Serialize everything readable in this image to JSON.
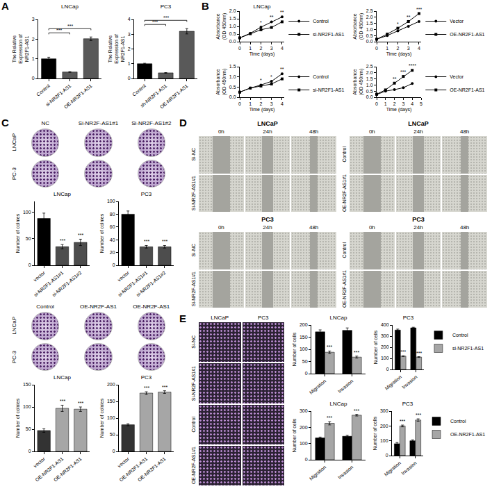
{
  "letters": [
    "A",
    "B",
    "C",
    "D",
    "E"
  ],
  "chart_data": [
    {
      "type": "bar",
      "title": "LNCap",
      "y_label": "The Relative Expression of NR2F1-AS1",
      "categories": [
        "Control",
        "si-NR2F1-AS1",
        "OE-NR2F1-AS1"
      ],
      "values": [
        1.0,
        0.33,
        2.02
      ],
      "errors": [
        0.08,
        0.02,
        0.09
      ],
      "colors": [
        "#000000",
        "#595959",
        "#595959"
      ],
      "ylim": [
        0,
        3
      ],
      "yticks": [
        0,
        1,
        2,
        3
      ],
      "comparisons": [
        {
          "from": 0,
          "to": 1,
          "text": "***"
        },
        {
          "from": 0,
          "to": 2,
          "text": "***"
        }
      ]
    },
    {
      "type": "bar",
      "title": "PC3",
      "y_label": "The Relative Expression of NR2F1-AS1",
      "categories": [
        "Control",
        "sh-NR2F1-AS1",
        "OE-NR2F1-AS1"
      ],
      "values": [
        1.0,
        0.38,
        3.2
      ],
      "errors": [
        0.03,
        0.02,
        0.18
      ],
      "colors": [
        "#000000",
        "#595959",
        "#595959"
      ],
      "ylim": [
        0,
        4
      ],
      "yticks": [
        0,
        1,
        2,
        3,
        4
      ],
      "comparisons": [
        {
          "from": 0,
          "to": 1,
          "text": "***"
        },
        {
          "from": 0,
          "to": 2,
          "text": "***"
        }
      ]
    },
    {
      "type": "line",
      "title": "LNCap",
      "x": [
        0,
        1,
        2,
        3,
        4
      ],
      "x_label": "Time (days)",
      "y_label": "Absorbance (OD 450nm)",
      "xlim": [
        0,
        4.2
      ],
      "xticks": [
        0,
        1,
        2,
        3,
        4
      ],
      "ylim": [
        0,
        2
      ],
      "yticks": [
        {
          "value": 0,
          "label": "0.0"
        },
        0.5,
        {
          "value": 1,
          "label": "1.0"
        },
        1.5,
        {
          "value": 2,
          "label": "2.0"
        }
      ],
      "legend": "right",
      "series": [
        {
          "name": "Control",
          "color": "#000000",
          "marker": "circle",
          "values": [
            0.25,
            0.55,
            0.95,
            1.3,
            1.62
          ]
        },
        {
          "name": "si-NR2F1-AS1",
          "color": "#000000",
          "marker": "square",
          "values": [
            0.25,
            0.52,
            0.78,
            0.93,
            1.3
          ]
        }
      ],
      "significance": [
        {
          "x": 2,
          "text": "*"
        },
        {
          "x": 3,
          "text": "**"
        },
        {
          "x": 4,
          "text": "**"
        }
      ]
    },
    {
      "type": "line",
      "x": [
        0,
        1,
        2,
        3,
        4
      ],
      "x_label": "Time (days)",
      "y_label": "Absorbance (OD 450nm)",
      "xlim": [
        0,
        4.2
      ],
      "xticks": [
        0,
        1,
        2,
        3,
        4
      ],
      "ylim": [
        0,
        2.5
      ],
      "yticks": [
        {
          "value": 0,
          "label": "0.0"
        },
        0.5,
        {
          "value": 1,
          "label": "1.0"
        },
        1.5,
        {
          "value": 2,
          "label": "2.0"
        },
        2.5
      ],
      "legend": "right",
      "series": [
        {
          "name": "Vector",
          "color": "#000000",
          "marker": "circle",
          "values": [
            0.2,
            0.5,
            0.88,
            1.25,
            1.65
          ]
        },
        {
          "name": "OE-NR2F1-AS1",
          "color": "#000000",
          "marker": "square",
          "values": [
            0.2,
            0.62,
            1.1,
            1.65,
            2.3
          ]
        }
      ],
      "significance": [
        {
          "x": 2,
          "text": "*"
        },
        {
          "x": 3,
          "text": "**"
        },
        {
          "x": 4,
          "text": "***"
        }
      ]
    },
    {
      "type": "line",
      "x": [
        0,
        1,
        2,
        3,
        4
      ],
      "x_label": "Time (days)",
      "y_label": "Absorbance (OD 450nm)",
      "xlim": [
        0,
        4.2
      ],
      "xticks": [
        0,
        1,
        2,
        3,
        4
      ],
      "ylim": [
        0,
        1.5
      ],
      "yticks": [
        {
          "value": 0,
          "label": "0.0"
        },
        0.5,
        {
          "value": 1,
          "label": "1.0"
        },
        1.5
      ],
      "legend": "right",
      "series": [
        {
          "name": "Control",
          "color": "#000000",
          "marker": "circle",
          "values": [
            0.25,
            0.45,
            0.6,
            0.78,
            1.15
          ]
        },
        {
          "name": "si-NR2F1-AS1",
          "color": "#000000",
          "marker": "square",
          "values": [
            0.25,
            0.45,
            0.55,
            0.65,
            0.9
          ]
        }
      ],
      "significance": [
        {
          "x": 2,
          "text": "*"
        },
        {
          "x": 3,
          "text": "*"
        },
        {
          "x": 4,
          "text": "**"
        }
      ]
    },
    {
      "type": "line",
      "x": [
        0,
        1,
        2,
        3,
        4
      ],
      "x_label": "Time (days)",
      "y_label": "Absorbance (OD 450nm)",
      "xlim": [
        0,
        5
      ],
      "xticks": [
        0,
        1,
        2,
        3,
        4,
        5
      ],
      "ylim": [
        0,
        2.5
      ],
      "yticks": [
        {
          "value": 0,
          "label": "0.0"
        },
        0.5,
        {
          "value": 1,
          "label": "1.0"
        },
        1.5,
        {
          "value": 2,
          "label": "2.0"
        },
        2.5
      ],
      "legend": "right",
      "series": [
        {
          "name": "Vector",
          "color": "#000000",
          "marker": "circle",
          "values": [
            0.22,
            0.5,
            0.62,
            0.78,
            1.12
          ]
        },
        {
          "name": "OE-NR2F1-AS1",
          "color": "#000000",
          "marker": "square",
          "values": [
            0.25,
            0.6,
            1.15,
            1.7,
            2.2
          ]
        }
      ],
      "significance": [
        {
          "x": 2,
          "text": "**"
        },
        {
          "x": 3,
          "text": "***"
        },
        {
          "x": 4,
          "text": "****"
        }
      ]
    },
    {
      "type": "bar",
      "title": "LNCap",
      "y_label": "Number of colnies",
      "categories": [
        "vector",
        "si-NR2F1-AS1#1",
        "si-NR2F1-AS1#2"
      ],
      "values": [
        88,
        35,
        43
      ],
      "errors": [
        10,
        4,
        6
      ],
      "colors": [
        "#000000",
        "#4d4d4d",
        "#4d4d4d"
      ],
      "ylim": [
        0,
        120
      ],
      "yticks": [
        0,
        50,
        100
      ],
      "significance": [
        null,
        "***",
        "***"
      ]
    },
    {
      "type": "bar",
      "title": "PC3",
      "y_label": "Number of colnies",
      "categories": [
        "vector",
        "si-NR2F1-AS1#1",
        "si-NR2F1-AS1#2"
      ],
      "values": [
        80,
        29,
        29
      ],
      "errors": [
        5,
        2,
        2
      ],
      "colors": [
        "#000000",
        "#4d4d4d",
        "#4d4d4d"
      ],
      "ylim": [
        0,
        100
      ],
      "yticks": [
        0,
        20,
        40,
        60,
        80,
        100
      ],
      "significance": [
        null,
        "***",
        "***"
      ]
    },
    {
      "type": "bar",
      "title": "LNCap",
      "y_label": "Number of colnies",
      "categories": [
        "vector",
        "OE-NR2F1-AS1",
        "OE-NR2F1-AS1"
      ],
      "values": [
        47,
        97,
        95
      ],
      "errors": [
        4,
        7,
        5
      ],
      "colors": [
        "#333333",
        "#a6a6a6",
        "#a6a6a6"
      ],
      "ylim": [
        0,
        150
      ],
      "yticks": [
        0,
        50,
        100,
        150
      ],
      "significance": [
        null,
        "***",
        "***"
      ]
    },
    {
      "type": "bar",
      "title": "PC3",
      "y_label": "Number of colnies",
      "categories": [
        "vector",
        "OE-NR2F1-AS1",
        "OE-NR2F1-AS1"
      ],
      "values": [
        80,
        175,
        178
      ],
      "errors": [
        3,
        4,
        4
      ],
      "colors": [
        "#333333",
        "#a6a6a6",
        "#a6a6a6"
      ],
      "ylim": [
        0,
        200
      ],
      "yticks": [
        0,
        50,
        100,
        150,
        200
      ],
      "significance": [
        null,
        "***",
        "***"
      ]
    },
    {
      "type": "bar",
      "title": "LNCap",
      "y_label": "Number of cells",
      "categories": [
        "Migration",
        "Invasion"
      ],
      "ylim": [
        0,
        200
      ],
      "yticks": [
        0,
        50,
        100,
        150,
        200
      ],
      "series": [
        {
          "name": "Control",
          "color": "#000000",
          "values": [
            172,
            178
          ],
          "errors": [
            8,
            10
          ]
        },
        {
          "name": "si-NR2F1-AS1",
          "color": "#a6a6a6",
          "values": [
            88,
            68
          ],
          "errors": [
            5,
            4
          ],
          "significance": [
            "***",
            "***"
          ]
        }
      ]
    },
    {
      "type": "bar",
      "title": "PC3",
      "y_label": "Number of cells",
      "categories": [
        "Migration",
        "Invasion"
      ],
      "ylim": [
        0,
        400
      ],
      "yticks": [
        0,
        100,
        200,
        300,
        400
      ],
      "legend": "right",
      "series": [
        {
          "name": "Control",
          "color": "#000000",
          "values": [
            355,
            375
          ],
          "errors": [
            8,
            5
          ]
        },
        {
          "name": "si-NR2F1-AS1",
          "color": "#a6a6a6",
          "values": [
            120,
            112
          ],
          "errors": [
            3,
            3
          ],
          "significance": [
            "***",
            "***"
          ]
        }
      ]
    },
    {
      "type": "bar",
      "title": "LNCap",
      "y_label": "Number of cells",
      "categories": [
        "Migration",
        "Invasion"
      ],
      "ylim": [
        0,
        300
      ],
      "yticks": [
        0,
        100,
        200,
        300
      ],
      "series": [
        {
          "name": "Control",
          "color": "#000000",
          "values": [
            135,
            145
          ],
          "errors": [
            5,
            6
          ]
        },
        {
          "name": "OE-NR2F1-AS1",
          "color": "#a6a6a6",
          "values": [
            225,
            275
          ],
          "errors": [
            10,
            5
          ],
          "significance": [
            "***",
            "***"
          ]
        }
      ]
    },
    {
      "type": "bar",
      "title": "PC3",
      "y_label": "Number of cells",
      "categories": [
        "Migration",
        "Invasion"
      ],
      "ylim": [
        0,
        300
      ],
      "yticks": [
        0,
        100,
        200,
        300
      ],
      "legend": "right",
      "series": [
        {
          "name": "Control",
          "color": "#000000",
          "values": [
            80,
            100
          ],
          "errors": [
            8,
            6
          ]
        },
        {
          "name": "OE-NR2F1-AS1",
          "color": "#a6a6a6",
          "values": [
            200,
            240
          ],
          "errors": [
            6,
            8
          ],
          "significance": [
            "***",
            "***"
          ]
        }
      ]
    }
  ],
  "photo_panels": [
    {
      "columns": [
        "NC",
        "Si-NR2F-AS1#1",
        "Si-NR2F-AS1#2"
      ],
      "rows": [
        "LNCaP",
        "PC-3"
      ]
    },
    {
      "columns": [
        "Control",
        "OE-NR2F-AS1",
        "OE-NR2F-AS1"
      ],
      "rows": [
        "LNCaP",
        "PC-3"
      ]
    },
    {
      "title": "LNCaP",
      "columns": [
        "0h",
        "24h",
        "48h"
      ],
      "rows": [
        "Si-NC",
        "Si-NR2F-AS1#1"
      ]
    },
    {
      "title": "LNCaP",
      "columns": [
        "0h",
        "24h",
        "48h"
      ],
      "rows": [
        "Control",
        "OE-NR2F-AS1#1"
      ]
    },
    {
      "title": "PC3",
      "columns": [
        "0h",
        "24h",
        "48h"
      ],
      "rows": [
        "Si-NC",
        "Si-NR2F-AS1#1"
      ]
    },
    {
      "title": "PC3",
      "columns": [
        "0h",
        "24h",
        "48h"
      ],
      "rows": [
        "Control",
        "OE-NR2F-AS1#1"
      ]
    },
    {
      "columns": [
        "LNCaP",
        "PC3"
      ],
      "rows": [
        "Si-NC",
        "Si-NR2F-AS1#1",
        "Control",
        "OE-NR2F-AS1#1"
      ]
    }
  ]
}
